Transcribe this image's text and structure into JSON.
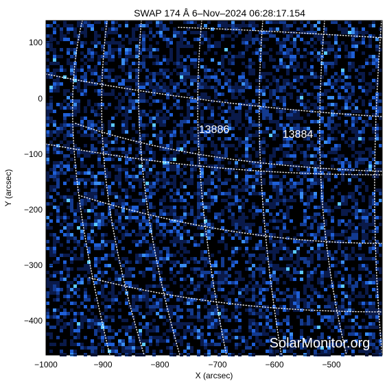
{
  "plot": {
    "title": "SWAP 174 Å  6–Nov–2024 06:28:17.154",
    "xlabel": "X (arcsec)",
    "ylabel": "Y (arcsec)",
    "xticks": [
      "−1000",
      "−900",
      "−800",
      "−700",
      "−600",
      "−500"
    ],
    "yticks": [
      "100",
      "0",
      "−100",
      "−200",
      "−300",
      "−400"
    ],
    "watermark": "SolarMonitor.org",
    "regions": [
      {
        "label": "13886"
      },
      {
        "label": "13884"
      }
    ]
  },
  "colors": {
    "background": "#000000",
    "pixel_dark": "#0a1a4a",
    "pixel_mid": "#1f5fd6",
    "pixel_bright": "#5cc9ff",
    "grid": "#ffffff",
    "axis": "#000000",
    "watermark": "#ffffff"
  }
}
